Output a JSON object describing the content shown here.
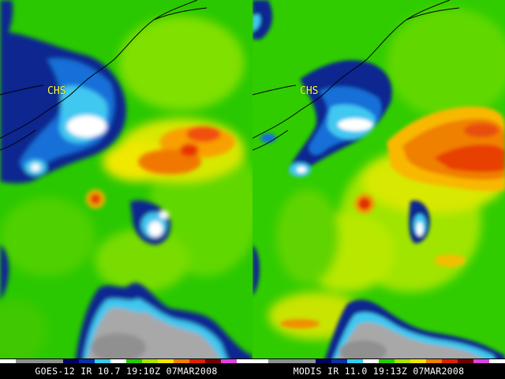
{
  "panels": [
    {
      "caption": "GOES-12 IR 10.7 19:10Z 07MAR2008",
      "station_label": "CHS"
    },
    {
      "caption": "MODIS IR 11.0 19:13Z 07MAR2008",
      "station_label": "CHS"
    }
  ],
  "colors": {
    "warm_ocean": "#22d000",
    "mid": "#a8e800",
    "yellow": "#f4e800",
    "orange": "#f08000",
    "red": "#e02000",
    "cold_cyan": "#30d0f0",
    "cold_blue": "#0830a8",
    "navy": "#000a60",
    "white": "#ffffff",
    "gray": "#a0a0a0",
    "label": "#ffff40"
  }
}
